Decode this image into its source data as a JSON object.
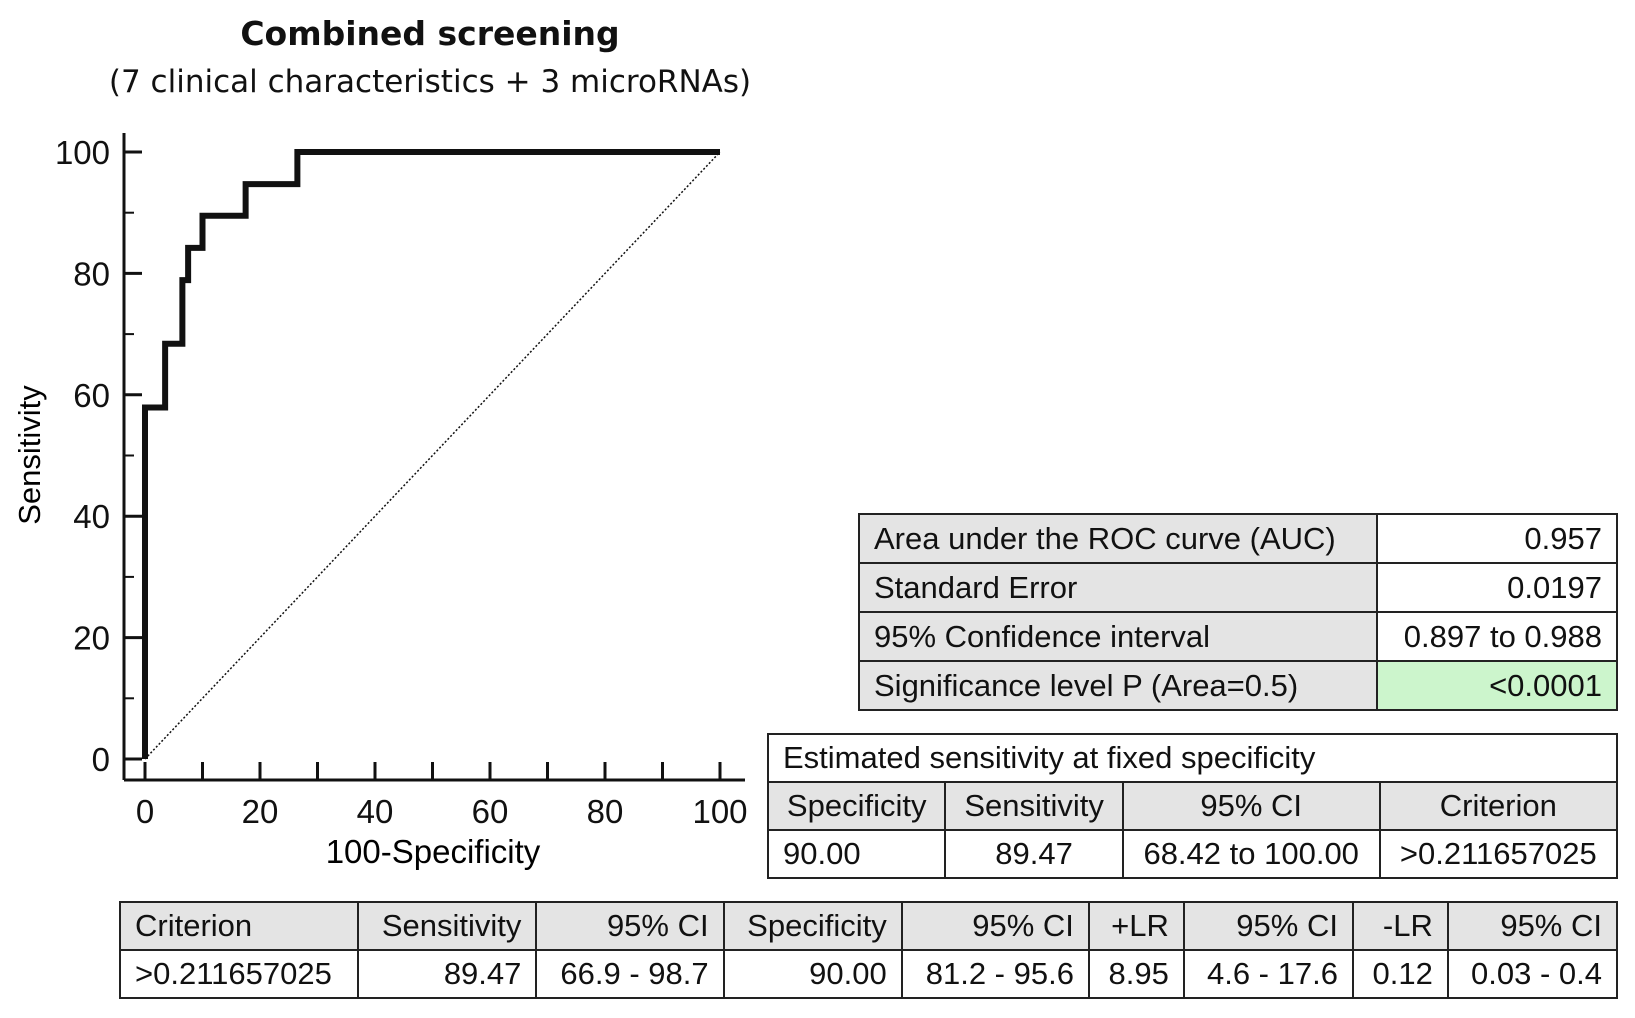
{
  "title": "Combined screening",
  "subtitle": "(7 clinical characteristics + 3 microRNAs)",
  "chart_data": {
    "type": "line",
    "title": "Combined screening",
    "subtitle": "(7 clinical characteristics + 3 microRNAs)",
    "xlabel": "100-Specificity",
    "ylabel": "Sensitivity",
    "xlim": [
      0,
      100
    ],
    "ylim": [
      0,
      100
    ],
    "xticks": [
      0,
      20,
      40,
      60,
      80,
      100
    ],
    "yticks": [
      0,
      20,
      40,
      60,
      80,
      100
    ],
    "series": [
      {
        "name": "ROC curve",
        "style": "solid",
        "x": [
          0,
          0,
          3.5,
          3.5,
          6.5,
          6.5,
          7.5,
          7.5,
          10,
          10,
          17.5,
          17.5,
          26.5,
          26.5,
          100
        ],
        "y": [
          0,
          57.9,
          57.9,
          68.4,
          68.4,
          78.9,
          78.9,
          84.2,
          84.2,
          89.5,
          89.5,
          94.7,
          94.7,
          100,
          100
        ]
      },
      {
        "name": "Reference line",
        "style": "dotted",
        "x": [
          0,
          100
        ],
        "y": [
          0,
          100
        ]
      }
    ]
  },
  "auc_table": {
    "rows": [
      {
        "label": "Area under the ROC curve (AUC)",
        "value": "0.957"
      },
      {
        "label": "Standard Error",
        "value": "0.0197"
      },
      {
        "label": "95% Confidence interval",
        "value": "0.897 to 0.988"
      },
      {
        "label": "Significance level P (Area=0.5)",
        "value": "<0.0001"
      }
    ],
    "highlight_color": "#ccf5cc"
  },
  "fixed_spec_table": {
    "title": "Estimated sensitivity at fixed specificity",
    "headers": [
      "Specificity",
      "Sensitivity",
      "95% CI",
      "Criterion"
    ],
    "row": [
      "90.00",
      "89.47",
      "68.42 to 100.00",
      ">0.211657025"
    ]
  },
  "criterion_table": {
    "headers": [
      "Criterion",
      "Sensitivity",
      "95% CI",
      "Specificity",
      "95% CI",
      "+LR",
      "95% CI",
      "-LR",
      "95% CI"
    ],
    "row": [
      ">0.211657025",
      "89.47",
      "66.9 - 98.7",
      "90.00",
      "81.2 - 95.6",
      "8.95",
      "4.6 - 17.6",
      "0.12",
      "0.03 - 0.4"
    ]
  }
}
